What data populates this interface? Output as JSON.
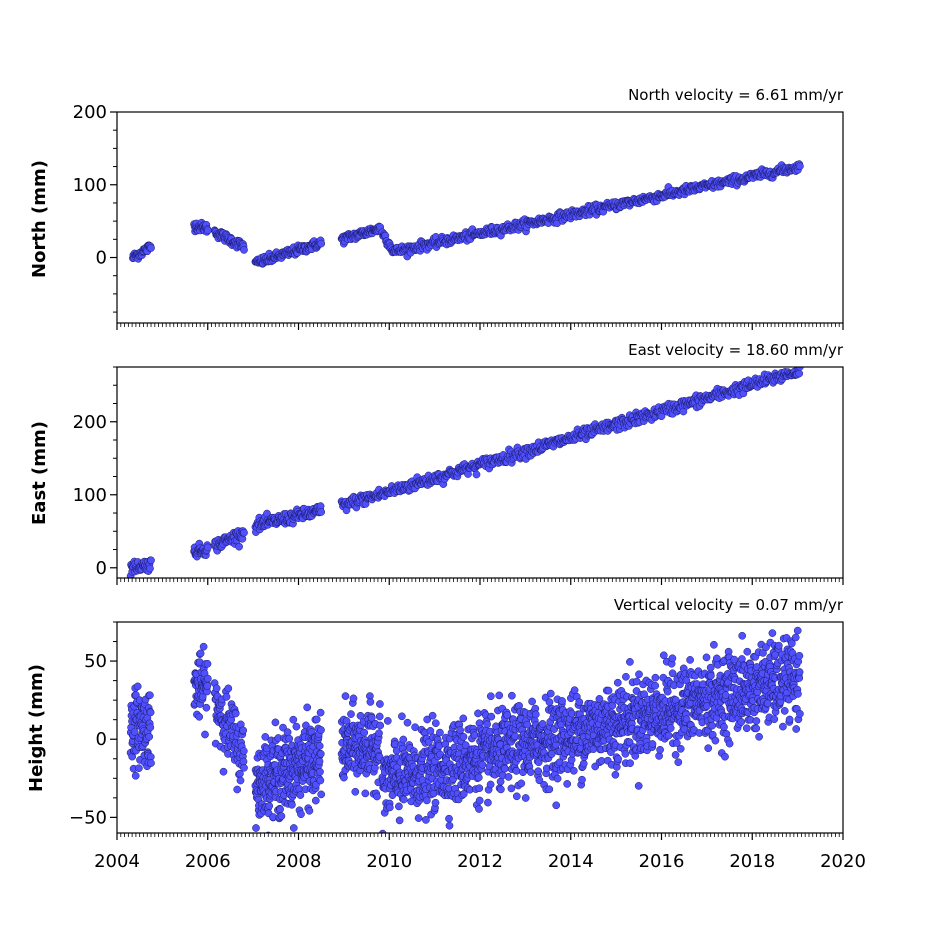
{
  "chart_data": [
    {
      "type": "scatter",
      "title": "North velocity = 6.61 mm/yr",
      "ylabel": "North (mm)",
      "xlim": [
        2004,
        2020
      ],
      "ylim": [
        -90,
        200
      ],
      "yticks": [
        0,
        100,
        200
      ],
      "x_tick_labels_shown": false,
      "marker_color": "#5050ff",
      "segments": [
        {
          "x0": 2004.35,
          "x1": 2004.75,
          "y0": 0,
          "y1": 15,
          "noise": 3,
          "n": 35
        },
        {
          "x0": 2005.7,
          "x1": 2006.0,
          "y0": 44,
          "y1": 40,
          "noise": 3,
          "n": 30
        },
        {
          "x0": 2006.15,
          "x1": 2006.8,
          "y0": 35,
          "y1": 15,
          "noise": 3,
          "n": 55
        },
        {
          "x0": 2007.05,
          "x1": 2008.5,
          "y0": -8,
          "y1": 20,
          "noise": 3,
          "n": 120
        },
        {
          "x0": 2008.95,
          "x1": 2009.8,
          "y0": 25,
          "y1": 40,
          "noise": 3,
          "n": 70
        },
        {
          "x0": 2009.85,
          "x1": 2010.1,
          "y0": 35,
          "y1": 8,
          "noise": 3,
          "n": 20
        },
        {
          "x0": 2010.1,
          "x1": 2019.05,
          "y0": 8,
          "y1": 125,
          "noise": 3,
          "n": 600
        }
      ]
    },
    {
      "type": "scatter",
      "title": "East velocity = 18.60 mm/yr",
      "ylabel": "East (mm)",
      "xlim": [
        2004,
        2020
      ],
      "ylim": [
        -14,
        275
      ],
      "yticks": [
        0,
        100,
        200
      ],
      "x_tick_labels_shown": false,
      "marker_color": "#5050ff",
      "segments": [
        {
          "x0": 2004.3,
          "x1": 2004.75,
          "y0": 0,
          "y1": 5,
          "noise": 4,
          "n": 40
        },
        {
          "x0": 2005.7,
          "x1": 2006.0,
          "y0": 22,
          "y1": 26,
          "noise": 4,
          "n": 30
        },
        {
          "x0": 2006.15,
          "x1": 2006.8,
          "y0": 30,
          "y1": 48,
          "noise": 4,
          "n": 55
        },
        {
          "x0": 2007.05,
          "x1": 2008.5,
          "y0": 58,
          "y1": 78,
          "noise": 4,
          "n": 120
        },
        {
          "x0": 2008.95,
          "x1": 2019.05,
          "y0": 85,
          "y1": 270,
          "noise": 4,
          "n": 650
        }
      ]
    },
    {
      "type": "scatter",
      "title": "Vertical velocity = 0.07 mm/yr",
      "ylabel": "Height (mm)",
      "xlabel": "",
      "xlim": [
        2004,
        2020
      ],
      "ylim": [
        -60,
        75
      ],
      "yticks": [
        -50,
        0,
        50
      ],
      "xticks": [
        2004,
        2006,
        2008,
        2010,
        2012,
        2014,
        2016,
        2018,
        2020
      ],
      "x_tick_labels_shown": true,
      "marker_color": "#5050ff",
      "segments": [
        {
          "x0": 2004.3,
          "x1": 2004.75,
          "y0": 8,
          "y1": 8,
          "noise": 12,
          "n": 90
        },
        {
          "x0": 2005.7,
          "x1": 2006.0,
          "y0": 33,
          "y1": 33,
          "noise": 10,
          "n": 60
        },
        {
          "x0": 2006.15,
          "x1": 2006.8,
          "y0": 25,
          "y1": -12,
          "noise": 11,
          "n": 100
        },
        {
          "x0": 2007.05,
          "x1": 2008.5,
          "y0": -28,
          "y1": -12,
          "noise": 13,
          "n": 320
        },
        {
          "x0": 2008.95,
          "x1": 2009.8,
          "y0": -5,
          "y1": -5,
          "noise": 12,
          "n": 170
        },
        {
          "x0": 2009.85,
          "x1": 2019.05,
          "y0": -27,
          "y1": 40,
          "noise": 13,
          "n": 1700
        }
      ]
    }
  ]
}
